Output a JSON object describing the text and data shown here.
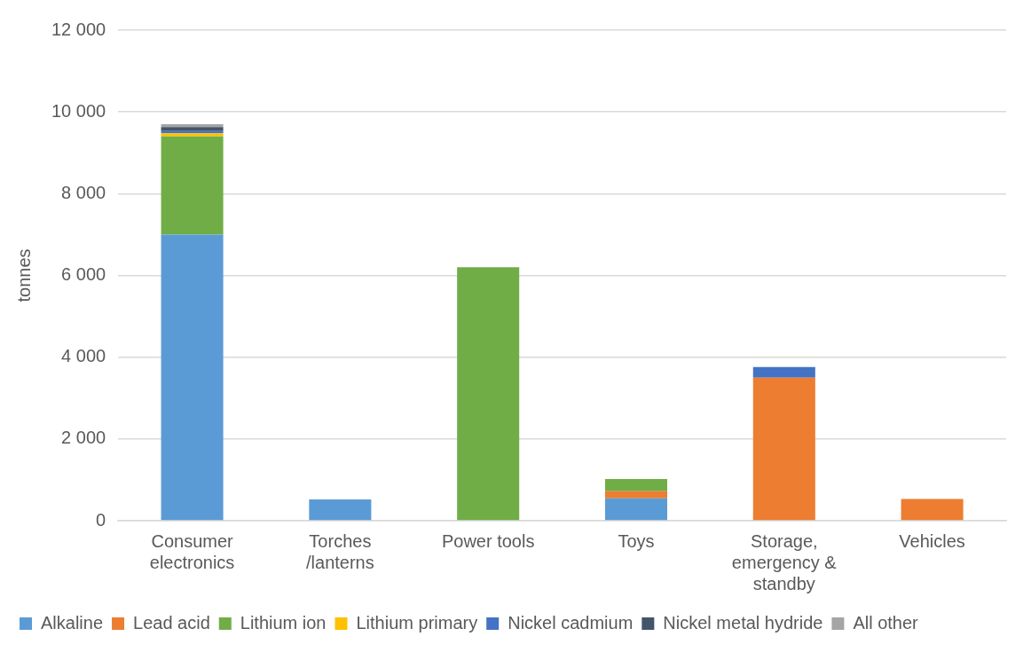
{
  "chart_data": {
    "type": "bar",
    "stacked": true,
    "ylabel": "tonnes",
    "categories": [
      "Consumer electronics",
      "Torches /lanterns",
      "Power tools",
      "Toys",
      "Storage, emergency & standby",
      "Vehicles"
    ],
    "series": [
      {
        "name": "Alkaline",
        "color": "#5b9bd5",
        "values": [
          7000,
          520,
          0,
          550,
          0,
          0
        ]
      },
      {
        "name": "Lead acid",
        "color": "#ed7d31",
        "values": [
          0,
          0,
          0,
          170,
          3500,
          530
        ]
      },
      {
        "name": "Lithium ion",
        "color": "#70ad47",
        "values": [
          2400,
          0,
          6200,
          300,
          0,
          0
        ]
      },
      {
        "name": "Lithium primary",
        "color": "#ffc000",
        "values": [
          80,
          0,
          0,
          0,
          0,
          0
        ]
      },
      {
        "name": "Nickel cadmium",
        "color": "#4472c4",
        "values": [
          50,
          0,
          0,
          0,
          260,
          0
        ]
      },
      {
        "name": "Nickel metal hydride",
        "color": "#44546a",
        "values": [
          100,
          0,
          0,
          0,
          0,
          0
        ]
      },
      {
        "name": "All other",
        "color": "#a5a5a5",
        "values": [
          70,
          0,
          0,
          0,
          0,
          0
        ]
      }
    ],
    "ylim": [
      0,
      12000
    ],
    "yticks": [
      0,
      {
        "value": 2000,
        "label": "2 000"
      },
      {
        "value": 4000,
        "label": "4 000"
      },
      {
        "value": 6000,
        "label": "6 000"
      },
      {
        "value": 8000,
        "label": "8 000"
      },
      {
        "value": 10000,
        "label": "10 000"
      },
      {
        "value": 12000,
        "label": "12 000"
      }
    ],
    "grid": "y",
    "legend": "bottom"
  }
}
